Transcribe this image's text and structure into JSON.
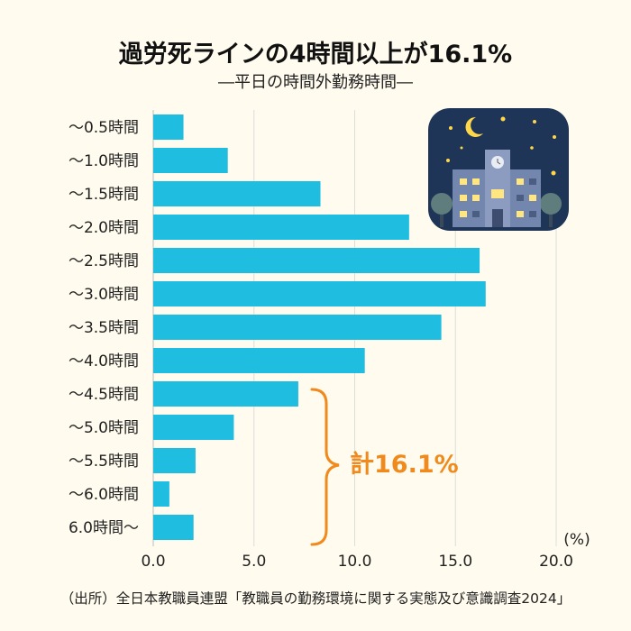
{
  "header": {
    "title": "過労死ラインの4時間以上が16.1%",
    "subtitle": "―平日の時間外勤務時間―"
  },
  "source": "（出所）全日本教職員連盟「教職員の勤務環境に関する実態及び意識調査2024」",
  "annotation": {
    "text": "計16.1%",
    "color": "#f08a1c"
  },
  "colors": {
    "bar": "#1fbde0",
    "grid": "#dddddd",
    "night_sky": "#1e3557",
    "building": "#7386ad",
    "moon": "#ffd84a"
  },
  "icons": [
    "night-school-illustration"
  ],
  "chart_data": {
    "type": "bar",
    "orientation": "horizontal",
    "categories": [
      "～0.5時間",
      "～1.0時間",
      "～1.5時間",
      "～2.0時間",
      "～2.5時間",
      "～3.0時間",
      "～3.5時間",
      "～4.0時間",
      "～4.5時間",
      "～5.0時間",
      "～5.5時間",
      "～6.0時間",
      "6.0時間～"
    ],
    "values": [
      1.5,
      3.7,
      8.3,
      12.7,
      16.2,
      16.5,
      14.3,
      10.5,
      7.2,
      4.0,
      2.1,
      0.8,
      2.0
    ],
    "x_ticks": [
      "0.0",
      "5.0",
      "10.0",
      "15.0",
      "20.0"
    ],
    "xlim": [
      0,
      20
    ],
    "unit_label": "(%)",
    "grid": true
  }
}
